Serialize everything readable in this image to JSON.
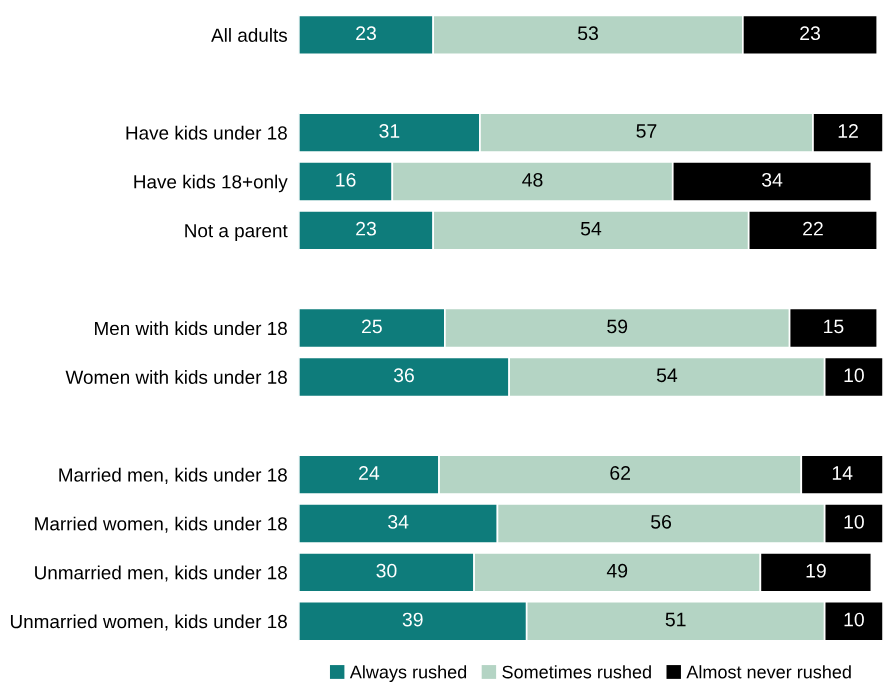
{
  "chart_data": {
    "type": "bar",
    "orientation": "horizontal",
    "stacked": true,
    "data_labels": true,
    "legend": "bottom",
    "grid": false,
    "categories": [
      "All adults",
      null,
      "Have kids under 18",
      "Have kids 18+only",
      "Not a parent",
      null,
      "Men with kids under 18",
      "Women with kids under 18",
      null,
      "Married men, kids under 18",
      "Married women, kids under 18",
      "Unmarried men, kids under 18",
      "Unmarried women, kids under 18"
    ],
    "series": [
      {
        "name": "Always rushed",
        "color": "#0e7c7b",
        "values": [
          23,
          null,
          31,
          16,
          23,
          null,
          25,
          36,
          null,
          24,
          34,
          30,
          39
        ]
      },
      {
        "name": "Sometimes rushed",
        "color": "#b4d4c4",
        "values": [
          53,
          null,
          57,
          48,
          54,
          null,
          59,
          54,
          null,
          62,
          56,
          49,
          51
        ]
      },
      {
        "name": "Almost never rushed",
        "color": "#000000",
        "values": [
          23,
          null,
          12,
          34,
          22,
          null,
          15,
          10,
          null,
          14,
          10,
          19,
          10
        ]
      }
    ]
  }
}
